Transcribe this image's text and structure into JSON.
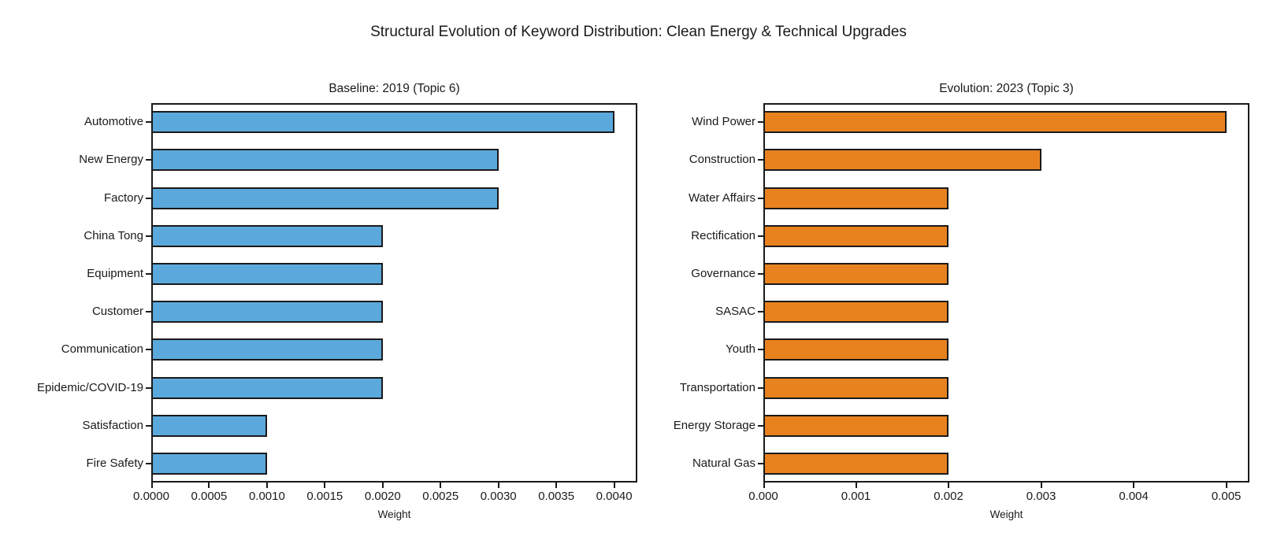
{
  "figure": {
    "title": "Structural Evolution of Keyword Distribution: Clean Energy & Technical Upgrades",
    "background": "#ffffff",
    "text_color": "#1a1a1a"
  },
  "chart_data": [
    {
      "type": "bar",
      "orientation": "horizontal",
      "title": "Baseline: 2019 (Topic 6)",
      "xlabel": "Weight",
      "categories": [
        "Automotive",
        "New Energy",
        "Factory",
        "China Tong",
        "Equipment",
        "Customer",
        "Communication",
        "Epidemic/COVID-19",
        "Satisfaction",
        "Fire Safety"
      ],
      "values": [
        0.004,
        0.003,
        0.003,
        0.002,
        0.002,
        0.002,
        0.002,
        0.002,
        0.001,
        0.001
      ],
      "xlim": [
        0,
        0.0042
      ],
      "xtick_values": [
        0,
        0.0005,
        0.001,
        0.0015,
        0.002,
        0.0025,
        0.003,
        0.0035,
        0.004
      ],
      "xtick_labels": [
        "0.0000",
        "0.0005",
        "0.0010",
        "0.0015",
        "0.0020",
        "0.0025",
        "0.0030",
        "0.0035",
        "0.0040"
      ],
      "bar_color": "#5BA9DC",
      "edge_color": "#1a1a1a",
      "grid": false,
      "legend": null
    },
    {
      "type": "bar",
      "orientation": "horizontal",
      "title": "Evolution: 2023 (Topic 3)",
      "xlabel": "Weight",
      "categories": [
        "Wind Power",
        "Construction",
        "Water Affairs",
        "Rectification",
        "Governance",
        "SASAC",
        "Youth",
        "Transportation",
        "Energy Storage",
        "Natural Gas"
      ],
      "values": [
        0.005,
        0.003,
        0.002,
        0.002,
        0.002,
        0.002,
        0.002,
        0.002,
        0.002,
        0.002
      ],
      "xlim": [
        0,
        0.00525
      ],
      "xtick_values": [
        0,
        0.001,
        0.002,
        0.003,
        0.004,
        0.005
      ],
      "xtick_labels": [
        "0.000",
        "0.001",
        "0.002",
        "0.003",
        "0.004",
        "0.005"
      ],
      "bar_color": "#E8821E",
      "edge_color": "#1a1a1a",
      "grid": false,
      "legend": null
    }
  ]
}
